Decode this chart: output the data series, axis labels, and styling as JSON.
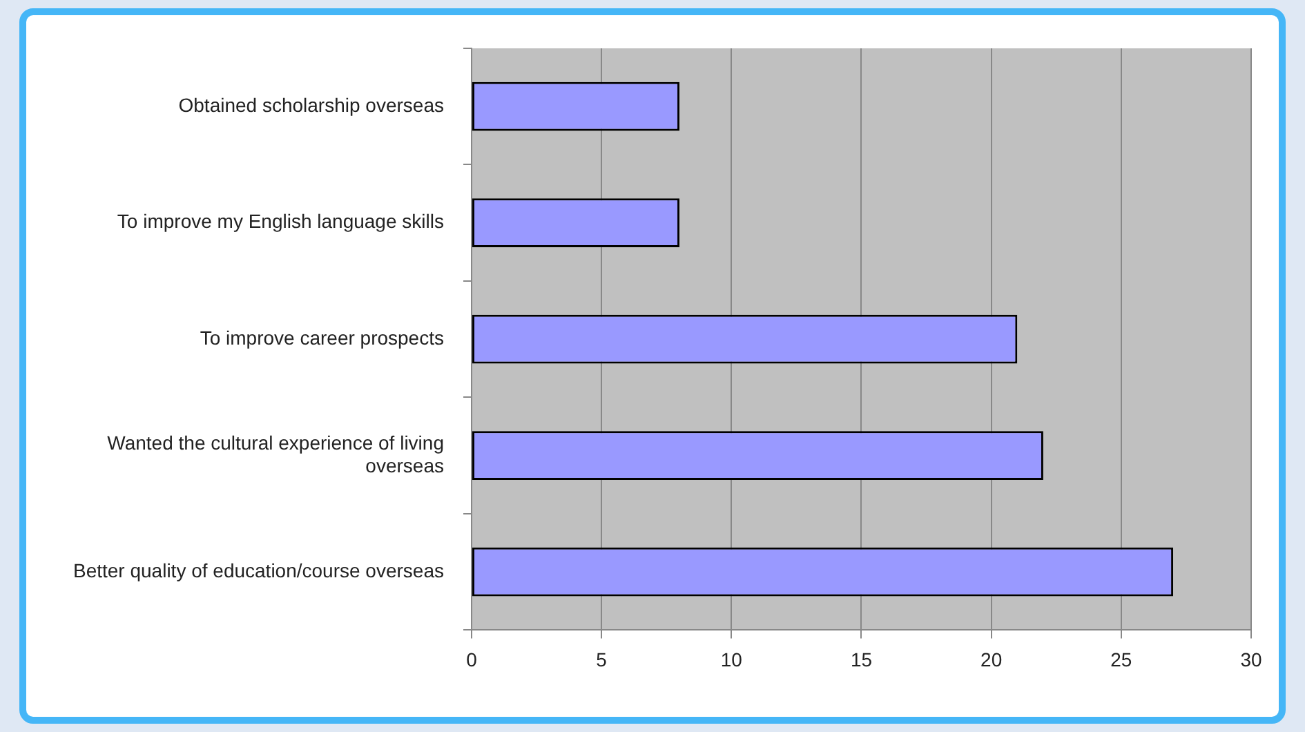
{
  "chart_data": {
    "type": "bar",
    "orientation": "horizontal",
    "categories": [
      "Obtained scholarship overseas",
      "To improve my English language skills",
      "To improve career prospects",
      "Wanted the cultural experience of living overseas",
      "Better quality of education/course overseas"
    ],
    "values": [
      8,
      8,
      21,
      22,
      27
    ],
    "color": "#9999ff",
    "xlim": [
      0,
      30
    ],
    "xticks": [
      0,
      5,
      10,
      15,
      20,
      25,
      30
    ],
    "grid": "x",
    "legend": false
  }
}
